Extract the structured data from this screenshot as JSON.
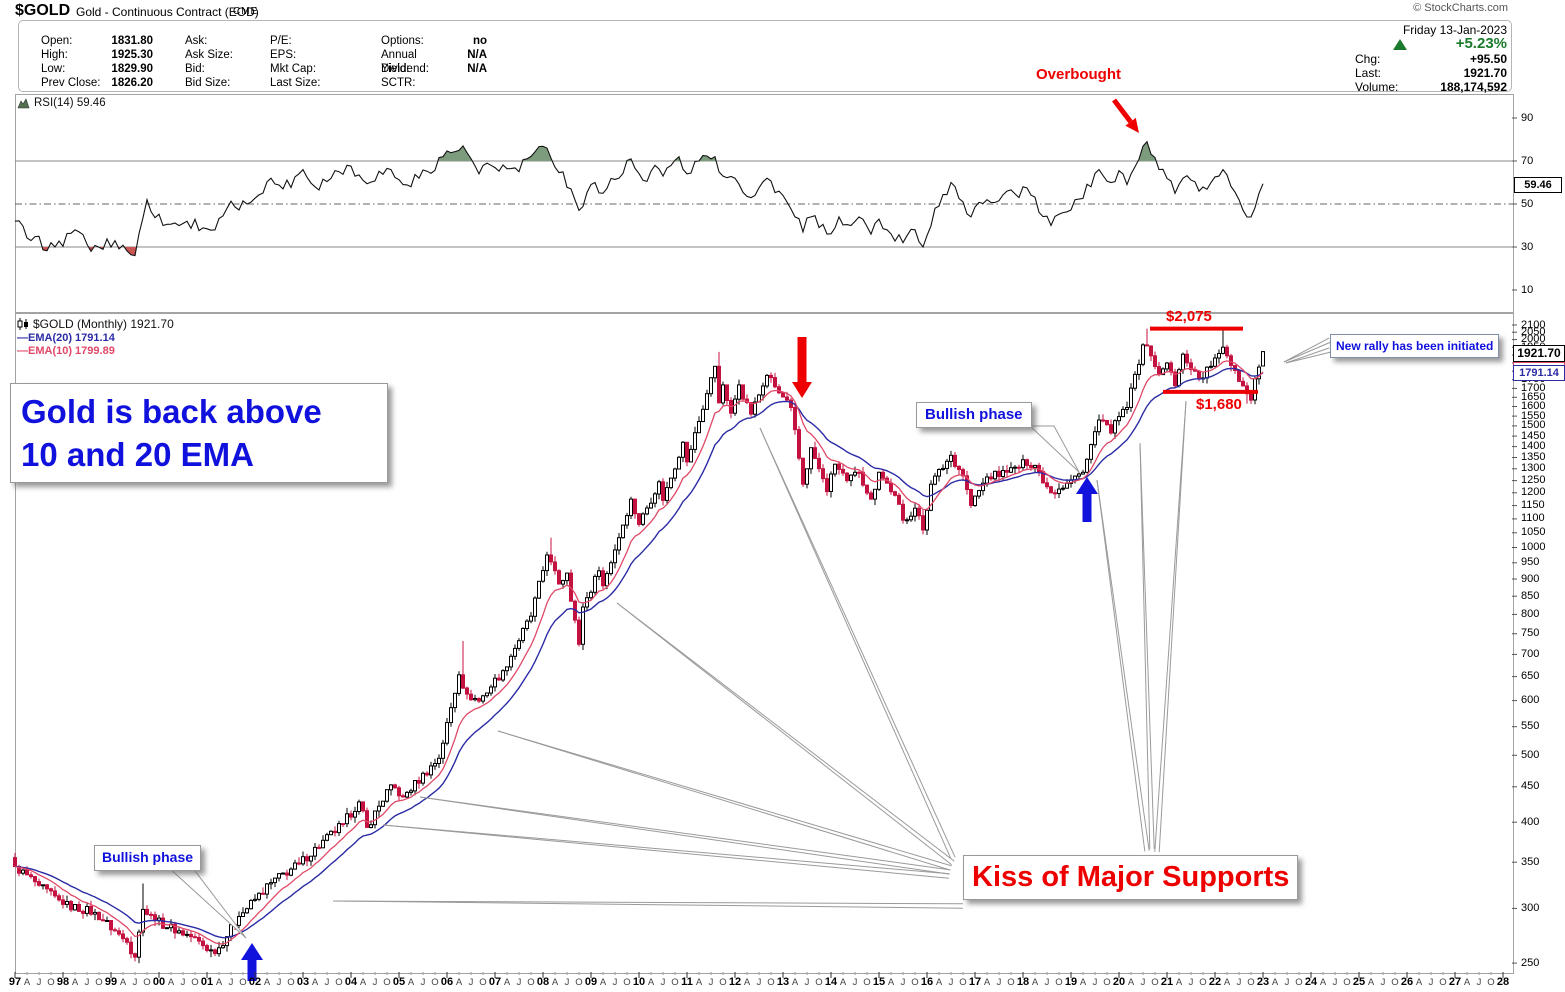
{
  "header": {
    "symbol": "$GOLD",
    "description": "Gold - Continuous Contract (EOD)",
    "exchange": "CME",
    "copyright": "© StockCharts.com",
    "date": "Friday 13-Jan-2023",
    "quote": {
      "columns": [
        [
          [
            "Open:",
            "1831.80"
          ],
          [
            "High:",
            "1925.30"
          ],
          [
            "Low:",
            "1829.90"
          ],
          [
            "Prev Close:",
            "1826.20"
          ]
        ],
        [
          [
            "Ask:",
            ""
          ],
          [
            "Ask Size:",
            ""
          ],
          [
            "Bid:",
            ""
          ],
          [
            "Bid Size:",
            ""
          ]
        ],
        [
          [
            "P/E:",
            ""
          ],
          [
            "EPS:",
            ""
          ],
          [
            "Mkt Cap:",
            ""
          ],
          [
            "Last Size:",
            ""
          ]
        ],
        [
          [
            "Options:",
            "no"
          ],
          [
            "Annual Dividend:",
            "N/A"
          ],
          [
            "Yield:",
            "N/A"
          ],
          [
            "SCTR:",
            ""
          ]
        ]
      ],
      "change_pct": "+5.23%",
      "chg_label": "Chg:",
      "chg": "+95.50",
      "last_label": "Last:",
      "last": "1921.70",
      "volume_label": "Volume:",
      "volume": "188,174,592"
    }
  },
  "rsi_panel": {
    "label": "RSI(14) 59.46",
    "value_tag": "59.46",
    "axis_ticks": [
      90,
      70,
      50,
      30,
      10
    ],
    "overbought_label": "Overbought"
  },
  "main_panel": {
    "legend": {
      "main": "$GOLD (Monthly) 1921.70",
      "ema20": "EMA(20) 1791.14",
      "ema10": "EMA(10) 1799.89"
    },
    "tags": {
      "price": "1921.70",
      "ema20": "1791.14",
      "ema10": "1799.89"
    },
    "x_axis_years": [
      "97",
      "98",
      "99",
      "00",
      "01",
      "02",
      "03",
      "04",
      "05",
      "06",
      "07",
      "08",
      "09",
      "10",
      "11",
      "12",
      "13",
      "14",
      "15",
      "16",
      "17",
      "18",
      "19",
      "20",
      "21",
      "22",
      "23",
      "24",
      "25",
      "26",
      "27",
      "28"
    ],
    "x_axis_month_letters": [
      "A",
      "J",
      "O"
    ]
  },
  "annotations": {
    "gold_back": {
      "line1": "Gold is back above",
      "line2": "10 and 20 EMA"
    },
    "bullish_mid": "Bullish phase",
    "bullish_low": "Bullish phase",
    "kiss": "Kiss of Major Supports",
    "new_rally": "New rally has been initiated",
    "overbought": "Overbought",
    "level_high": "$2,075",
    "level_low": "$1,680"
  },
  "chart_data": {
    "type": "candlestick",
    "symbol": "$GOLD",
    "timeframe": "Monthly",
    "title": "$GOLD (Monthly) 1921.70",
    "x_range": [
      "1997-01",
      "2028-12"
    ],
    "price_axis": {
      "scale": "log",
      "min": 250,
      "max": 2100,
      "tick_step": 50
    },
    "last_candle": {
      "open": 1831.8,
      "high": 1925.3,
      "low": 1829.9,
      "close": 1921.7
    },
    "overlays": [
      {
        "name": "EMA(20)",
        "last": 1791.14
      },
      {
        "name": "EMA(10)",
        "last": 1799.89
      }
    ],
    "support_levels": [
      {
        "label": "$2,075",
        "price": 2075
      },
      {
        "label": "$1,680",
        "price": 1680
      }
    ],
    "price_anchors": [
      [
        "1997-01",
        345
      ],
      [
        "1997-07",
        324
      ],
      [
        "1998-01",
        304
      ],
      [
        "1998-09",
        296
      ],
      [
        "1999-05",
        268
      ],
      [
        "1999-07",
        255
      ],
      [
        "1999-09",
        299
      ],
      [
        "1999-12",
        288
      ],
      [
        "2000-09",
        273
      ],
      [
        "2001-03",
        258
      ],
      [
        "2001-09",
        292
      ],
      [
        "2002-05",
        327
      ],
      [
        "2002-12",
        348
      ],
      [
        "2003-11",
        398
      ],
      [
        "2004-03",
        428
      ],
      [
        "2004-05",
        393
      ],
      [
        "2004-11",
        453
      ],
      [
        "2005-02",
        435
      ],
      [
        "2005-11",
        495
      ],
      [
        "2006-04",
        654
      ],
      [
        "2006-06",
        613
      ],
      [
        "2006-09",
        599
      ],
      [
        "2007-03",
        663
      ],
      [
        "2007-10",
        795
      ],
      [
        "2008-02",
        975
      ],
      [
        "2008-05",
        885
      ],
      [
        "2008-07",
        918
      ],
      [
        "2008-10",
        724
      ],
      [
        "2008-11",
        820
      ],
      [
        "2009-03",
        925
      ],
      [
        "2009-04",
        880
      ],
      [
        "2009-11",
        1175
      ],
      [
        "2010-01",
        1080
      ],
      [
        "2010-06",
        1245
      ],
      [
        "2010-07",
        1170
      ],
      [
        "2010-12",
        1420
      ],
      [
        "2011-01",
        1330
      ],
      [
        "2011-08",
        1830
      ],
      [
        "2011-09",
        1620
      ],
      [
        "2011-10",
        1720
      ],
      [
        "2011-12",
        1565
      ],
      [
        "2012-02",
        1720
      ],
      [
        "2012-05",
        1560
      ],
      [
        "2012-09",
        1775
      ],
      [
        "2012-12",
        1675
      ],
      [
        "2013-03",
        1595
      ],
      [
        "2013-06",
        1235
      ],
      [
        "2013-08",
        1395
      ],
      [
        "2013-12",
        1205
      ],
      [
        "2014-02",
        1320
      ],
      [
        "2014-05",
        1250
      ],
      [
        "2014-08",
        1285
      ],
      [
        "2014-11",
        1175
      ],
      [
        "2015-01",
        1285
      ],
      [
        "2015-05",
        1190
      ],
      [
        "2015-07",
        1095
      ],
      [
        "2015-10",
        1140
      ],
      [
        "2015-12",
        1060
      ],
      [
        "2016-02",
        1235
      ],
      [
        "2016-07",
        1360
      ],
      [
        "2016-10",
        1270
      ],
      [
        "2016-12",
        1150
      ],
      [
        "2017-04",
        1265
      ],
      [
        "2017-09",
        1285
      ],
      [
        "2017-12",
        1305
      ],
      [
        "2018-01",
        1340
      ],
      [
        "2018-04",
        1315
      ],
      [
        "2018-08",
        1200
      ],
      [
        "2018-10",
        1215
      ],
      [
        "2019-04",
        1285
      ],
      [
        "2019-08",
        1530
      ],
      [
        "2019-11",
        1465
      ],
      [
        "2020-02",
        1585
      ],
      [
        "2020-03",
        1595
      ],
      [
        "2020-07",
        1965
      ],
      [
        "2020-09",
        1895
      ],
      [
        "2020-11",
        1780
      ],
      [
        "2021-01",
        1850
      ],
      [
        "2021-03",
        1715
      ],
      [
        "2021-05",
        1905
      ],
      [
        "2021-09",
        1755
      ],
      [
        "2021-12",
        1830
      ],
      [
        "2022-02",
        1910
      ],
      [
        "2022-03",
        1950
      ],
      [
        "2022-04",
        1895
      ],
      [
        "2022-06",
        1805
      ],
      [
        "2022-09",
        1670
      ],
      [
        "2022-10",
        1635
      ],
      [
        "2022-11",
        1755
      ],
      [
        "2022-12",
        1825
      ],
      [
        "2023-01",
        1921.7
      ]
    ],
    "high_overrides": {
      "1999-09": 326,
      "2006-05": 732,
      "2008-03": 1033,
      "2011-09": 1920,
      "2020-08": 2075,
      "2022-03": 2070
    },
    "low_overrides": {
      "1999-07": 252,
      "2001-02": 255,
      "2015-12": 1045,
      "2022-09": 1615
    },
    "rsi": {
      "period": 14,
      "last": 59.46,
      "overbought": 70,
      "oversold": 30,
      "midline": 50,
      "anchors": [
        [
          "1997-01",
          42
        ],
        [
          "1997-05",
          33
        ],
        [
          "1997-11",
          30
        ],
        [
          "1998-04",
          38
        ],
        [
          "1998-08",
          28
        ],
        [
          "1999-02",
          33
        ],
        [
          "1999-07",
          26
        ],
        [
          "1999-10",
          52
        ],
        [
          "2000-02",
          40
        ],
        [
          "2000-08",
          42
        ],
        [
          "2001-03",
          38
        ],
        [
          "2001-06",
          48
        ],
        [
          "2001-11",
          50
        ],
        [
          "2002-05",
          62
        ],
        [
          "2002-08",
          57
        ],
        [
          "2003-01",
          66
        ],
        [
          "2003-04",
          58
        ],
        [
          "2003-12",
          68
        ],
        [
          "2004-04",
          61
        ],
        [
          "2004-11",
          66
        ],
        [
          "2005-02",
          59
        ],
        [
          "2005-06",
          62
        ],
        [
          "2005-12",
          72
        ],
        [
          "2006-05",
          77
        ],
        [
          "2006-09",
          64
        ],
        [
          "2006-12",
          68
        ],
        [
          "2007-07",
          65
        ],
        [
          "2007-09",
          71
        ],
        [
          "2008-02",
          76
        ],
        [
          "2008-08",
          57
        ],
        [
          "2008-10",
          47
        ],
        [
          "2009-02",
          60
        ],
        [
          "2009-04",
          55
        ],
        [
          "2009-11",
          71
        ],
        [
          "2010-02",
          61
        ],
        [
          "2010-05",
          68
        ],
        [
          "2010-07",
          63
        ],
        [
          "2010-11",
          72
        ],
        [
          "2011-01",
          64
        ],
        [
          "2011-04",
          70
        ],
        [
          "2011-08",
          72
        ],
        [
          "2011-10",
          63
        ],
        [
          "2012-01",
          62
        ],
        [
          "2012-05",
          53
        ],
        [
          "2012-09",
          62
        ],
        [
          "2012-12",
          56
        ],
        [
          "2013-04",
          44
        ],
        [
          "2013-06",
          37
        ],
        [
          "2013-08",
          44
        ],
        [
          "2013-12",
          36
        ],
        [
          "2014-03",
          44
        ],
        [
          "2014-06",
          40
        ],
        [
          "2014-08",
          44
        ],
        [
          "2014-11",
          36
        ],
        [
          "2015-01",
          43
        ],
        [
          "2015-03",
          38
        ],
        [
          "2015-07",
          32
        ],
        [
          "2015-10",
          38
        ],
        [
          "2015-12",
          30
        ],
        [
          "2016-03",
          48
        ],
        [
          "2016-07",
          60
        ],
        [
          "2016-10",
          51
        ],
        [
          "2016-12",
          44
        ],
        [
          "2017-04",
          52
        ],
        [
          "2017-09",
          56
        ],
        [
          "2017-12",
          53
        ],
        [
          "2018-01",
          58
        ],
        [
          "2018-08",
          40
        ],
        [
          "2018-11",
          46
        ],
        [
          "2019-02",
          52
        ],
        [
          "2019-06",
          58
        ],
        [
          "2019-08",
          66
        ],
        [
          "2019-11",
          60
        ],
        [
          "2020-02",
          64
        ],
        [
          "2020-03",
          59
        ],
        [
          "2020-08",
          79
        ],
        [
          "2020-11",
          66
        ],
        [
          "2021-03",
          55
        ],
        [
          "2021-05",
          62
        ],
        [
          "2021-09",
          56
        ],
        [
          "2021-12",
          60
        ],
        [
          "2022-03",
          66
        ],
        [
          "2022-07",
          52
        ],
        [
          "2022-10",
          44
        ],
        [
          "2022-12",
          55
        ],
        [
          "2023-01",
          59.46
        ]
      ]
    }
  },
  "colors": {
    "up_candle": "#000000",
    "down_candle": "#c41240",
    "ema20": "#2b2ba6",
    "ema10": "#e04868",
    "rsi_line": "#111111",
    "rsi_fill_over": "#7d9b7d",
    "rsi_fill_under": "#cc5555",
    "annotation_blue": "#1111dd",
    "annotation_red": "#ee0000",
    "gain_green": "#1b7a2b",
    "callout_gray": "#9a9a9a"
  }
}
